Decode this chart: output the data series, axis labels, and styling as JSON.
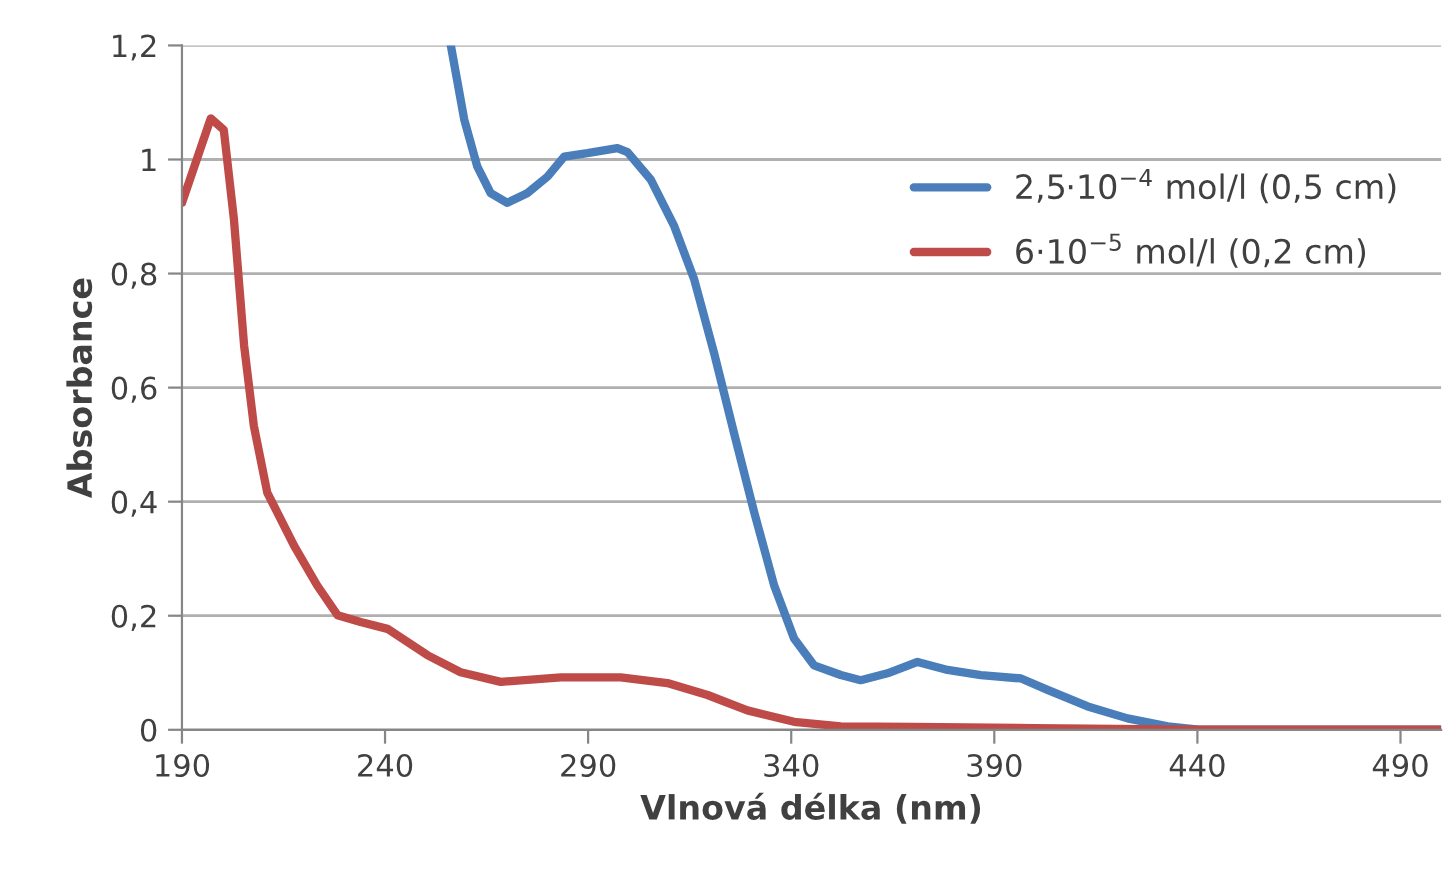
{
  "chart_data": {
    "type": "line",
    "xlabel": "Vlnová délka (nm)",
    "ylabel": "Absorbance",
    "xlim": [
      190,
      500
    ],
    "xticks": [
      190,
      240,
      290,
      340,
      390,
      440,
      490
    ],
    "ylim": [
      0,
      1.2
    ],
    "yticks": [
      0,
      {
        "value": 0.2,
        "label": "0,2"
      },
      {
        "value": 0.4,
        "label": "0,4"
      },
      {
        "value": 0.6,
        "label": "0,6"
      },
      {
        "value": 0.8,
        "label": "0,8"
      },
      1,
      {
        "value": 1.2,
        "label": "1,2"
      }
    ],
    "grid": "y",
    "legend": "right",
    "marker": "none",
    "line_style": "solid",
    "series": [
      {
        "name": "2,5·10$^{−4}$ mol/l (0,5 cm)",
        "color": "#4a7ebb",
        "x": [
          256.2,
          259.5,
          262.7,
          266,
          270.1,
          275,
          280,
          284.1,
          289.8,
          297.2,
          299.7,
          305.4,
          311.2,
          316.1,
          321,
          325.9,
          330.9,
          335.8,
          340.7,
          345.6,
          352.2,
          357.1,
          363.7,
          371.1,
          378.5,
          386.7,
          396.6,
          403.1,
          413,
          422.8,
          432.7,
          440.9,
          500
        ],
        "values": [
          1.2,
          1.07,
          0.988,
          0.941,
          0.924,
          0.941,
          0.97,
          1.005,
          1.011,
          1.02,
          1.013,
          0.965,
          0.883,
          0.79,
          0.661,
          0.521,
          0.381,
          0.253,
          0.16,
          0.113,
          0.096,
          0.087,
          0.099,
          0.119,
          0.105,
          0.096,
          0.09,
          0.07,
          0.041,
          0.02,
          0.006,
          0,
          0
        ]
      },
      {
        "name": "6·10$^{−5}$ mol/l (0,2 cm)",
        "color": "#be4b48",
        "x": [
          190,
          197.1,
          200.3,
          202.8,
          205.3,
          207.7,
          211,
          217.6,
          223.3,
          228.3,
          234,
          240.6,
          250.4,
          258.6,
          268.5,
          283.3,
          298,
          309.5,
          319.4,
          329.2,
          340.7,
          352.2,
          370,
          400,
          440,
          500
        ],
        "values": [
          0.924,
          1.072,
          1.052,
          0.895,
          0.674,
          0.533,
          0.416,
          0.323,
          0.253,
          0.201,
          0.189,
          0.177,
          0.131,
          0.101,
          0.084,
          0.092,
          0.092,
          0.082,
          0.061,
          0.034,
          0.014,
          0.006,
          0.005,
          0.003,
          0,
          0
        ]
      }
    ]
  }
}
